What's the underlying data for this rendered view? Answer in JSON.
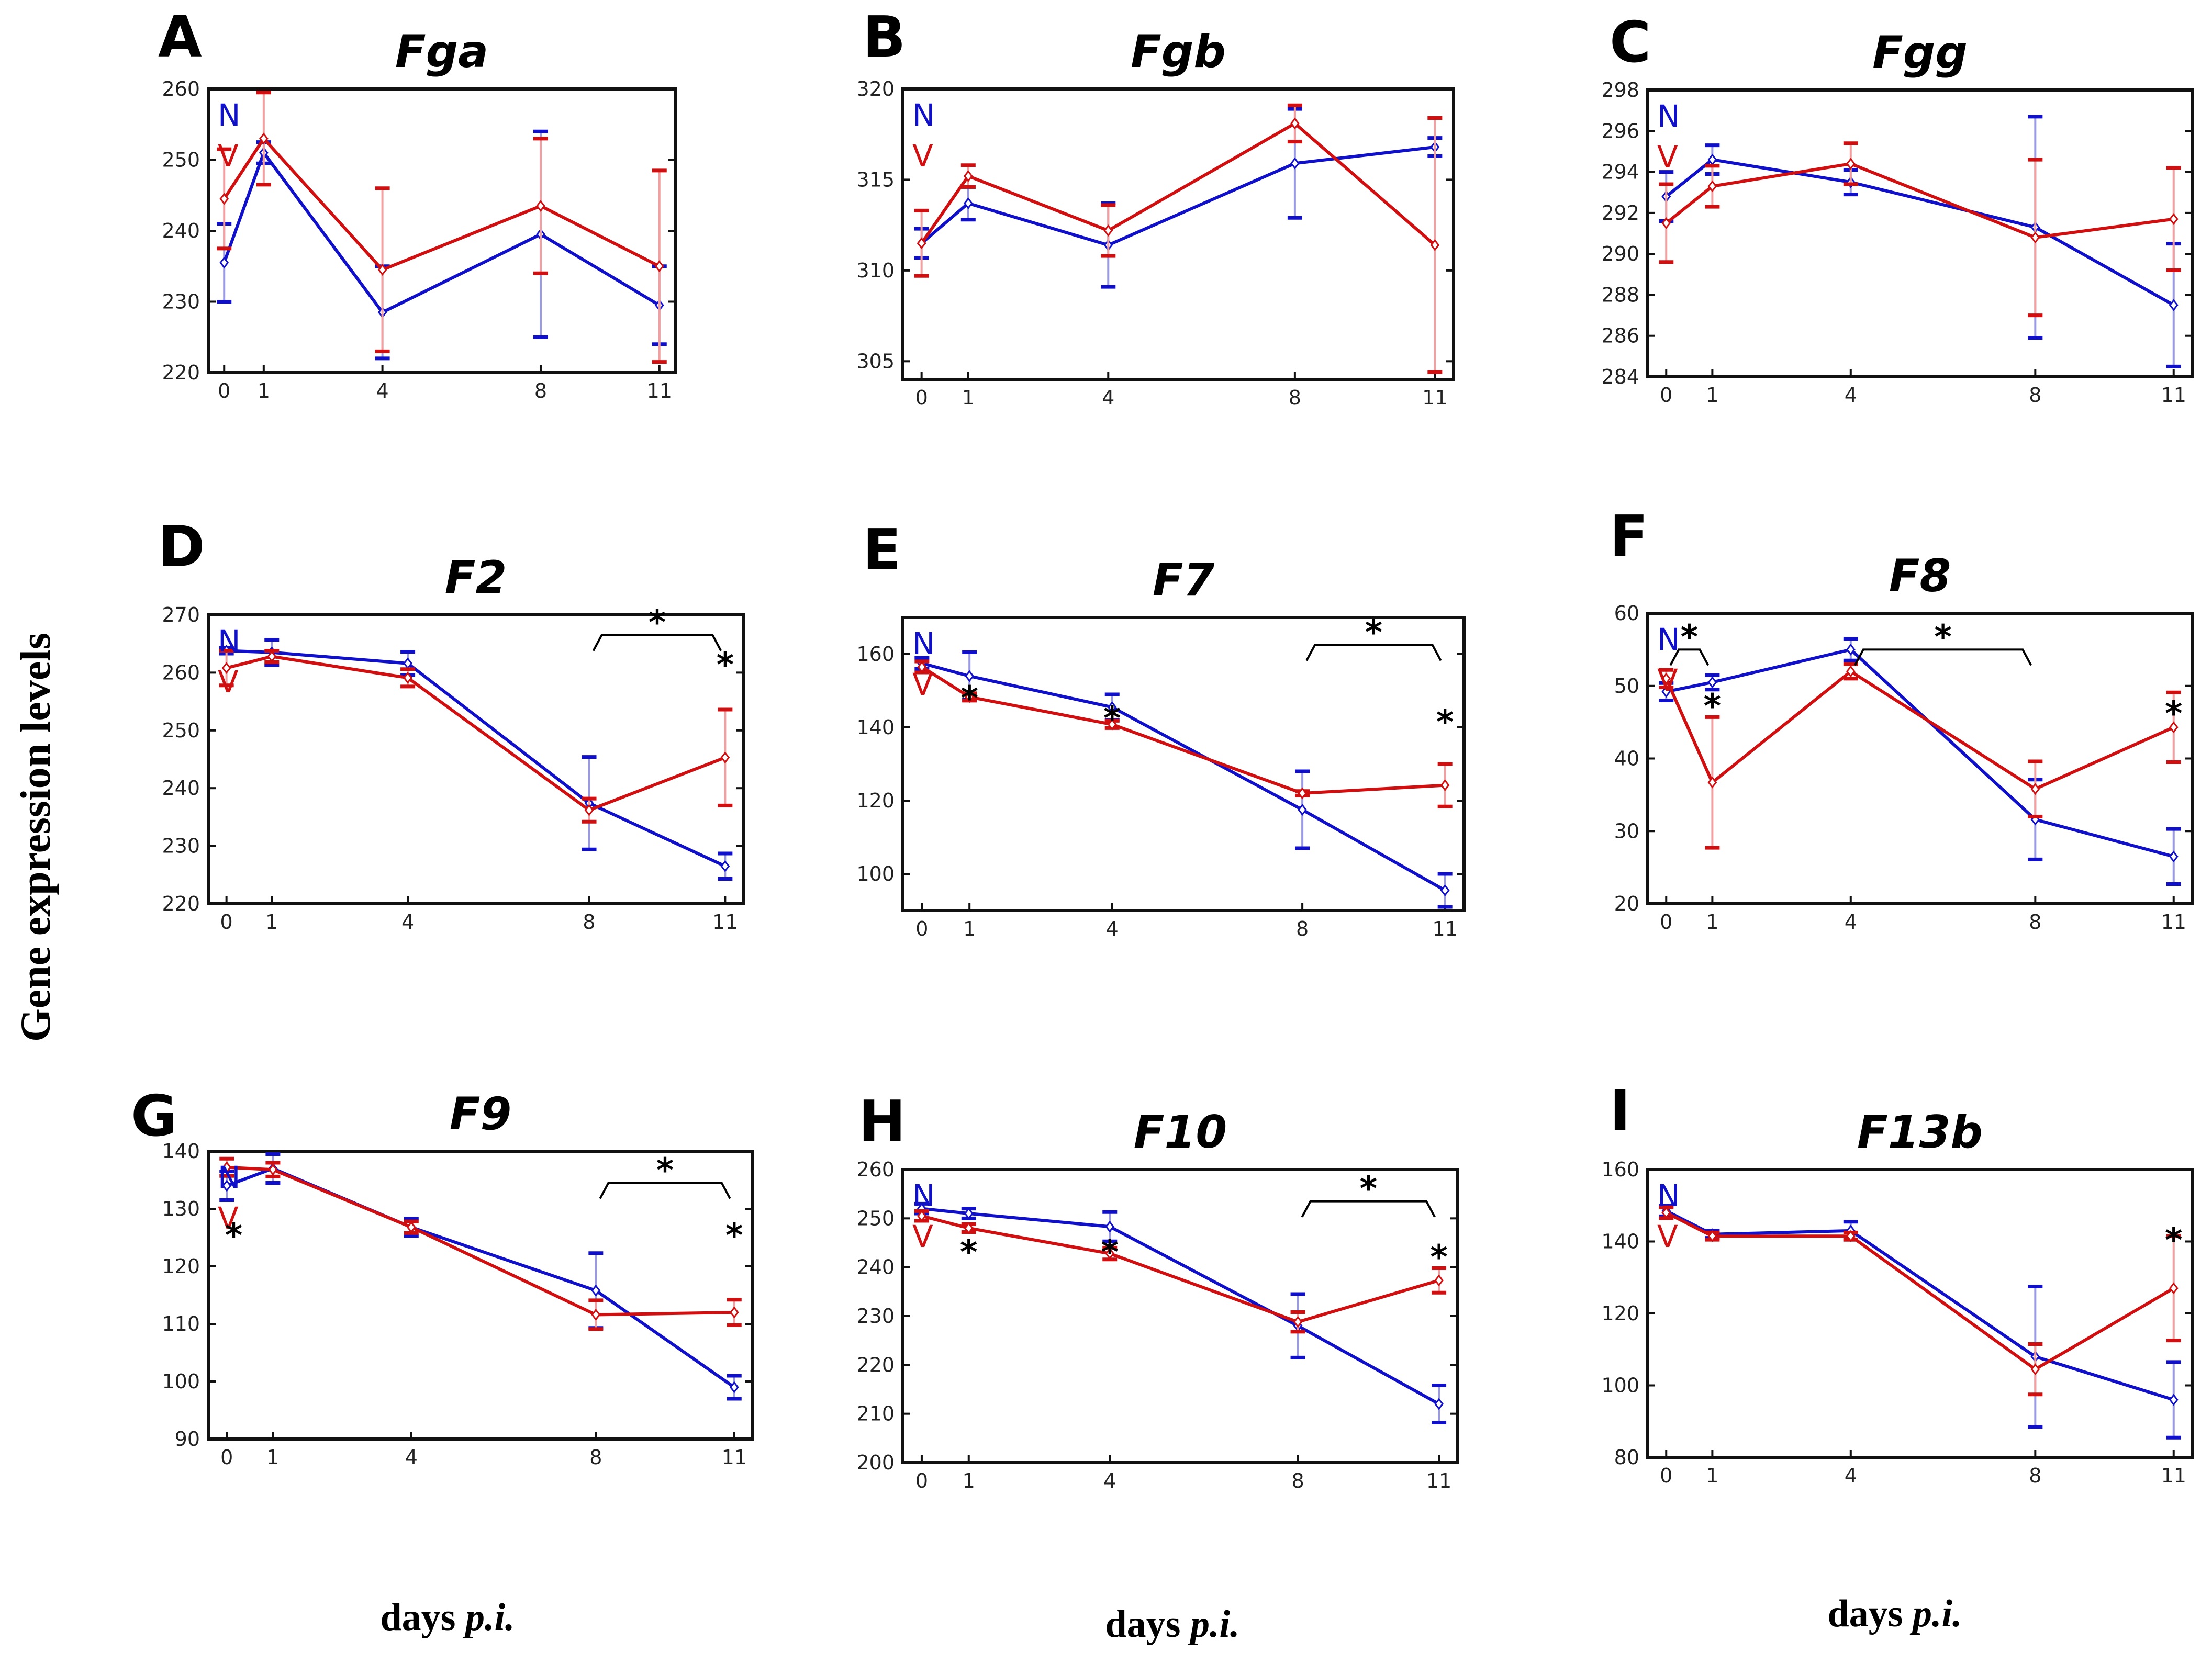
{
  "figure": {
    "y_label": "Gene expression levels",
    "x_label_prefix": "days ",
    "x_label_italic": "p.i.",
    "legend": [
      {
        "key": "N",
        "color": "#1010c8"
      },
      {
        "key": "V",
        "color": "#d01010"
      }
    ],
    "colors": {
      "N": "#1010c8",
      "V": "#d01010",
      "N_bar": "#9a9ae0",
      "V_bar": "#f0a0a0"
    }
  },
  "chart_data": [
    {
      "panel": "A",
      "title": "Fga",
      "type": "line",
      "x": [
        0,
        1,
        4,
        8,
        11
      ],
      "xlim": [
        -0.4,
        11.4
      ],
      "ylim": [
        220,
        260
      ],
      "yticks": [
        220,
        230,
        240,
        250,
        260
      ],
      "series": [
        {
          "name": "N",
          "values": [
            235.5,
            251,
            228.5,
            239.5,
            229.5
          ],
          "err": [
            5.5,
            1.5,
            6.5,
            14.5,
            5.5
          ]
        },
        {
          "name": "V",
          "values": [
            244.5,
            253,
            234.5,
            243.5,
            235
          ],
          "err": [
            7,
            6.5,
            11.5,
            9.5,
            13.5
          ]
        }
      ],
      "stars": [],
      "brackets": []
    },
    {
      "panel": "B",
      "title": "Fgb",
      "type": "line",
      "x": [
        0,
        1,
        4,
        8,
        11
      ],
      "xlim": [
        -0.4,
        11.4
      ],
      "ylim": [
        304,
        320
      ],
      "yticks": [
        305,
        310,
        315,
        320
      ],
      "series": [
        {
          "name": "N",
          "values": [
            311.5,
            313.7,
            311.4,
            315.9,
            316.8
          ],
          "err": [
            0.8,
            0.9,
            2.3,
            3.0,
            0.5
          ]
        },
        {
          "name": "V",
          "values": [
            311.5,
            315.2,
            312.2,
            318.1,
            311.4
          ],
          "err": [
            1.8,
            0.6,
            1.4,
            1.0,
            7.0
          ]
        }
      ],
      "stars": [],
      "brackets": []
    },
    {
      "panel": "C",
      "title": "Fgg",
      "type": "line",
      "x": [
        0,
        1,
        4,
        8,
        11
      ],
      "xlim": [
        -0.4,
        11.4
      ],
      "ylim": [
        284,
        298
      ],
      "yticks": [
        284,
        286,
        288,
        290,
        292,
        294,
        296,
        298
      ],
      "series": [
        {
          "name": "N",
          "values": [
            292.8,
            294.6,
            293.5,
            291.3,
            287.5
          ],
          "err": [
            1.2,
            0.7,
            0.6,
            5.4,
            3.0
          ]
        },
        {
          "name": "V",
          "values": [
            291.5,
            293.3,
            294.4,
            290.8,
            291.7
          ],
          "err": [
            1.9,
            1.0,
            1.0,
            3.8,
            2.5
          ]
        }
      ],
      "stars": [],
      "brackets": []
    },
    {
      "panel": "D",
      "title": "F2",
      "type": "line",
      "x": [
        0,
        1,
        4,
        8,
        11
      ],
      "xlim": [
        -0.4,
        11.4
      ],
      "ylim": [
        220,
        270
      ],
      "yticks": [
        220,
        230,
        240,
        250,
        260,
        270
      ],
      "series": [
        {
          "name": "N",
          "values": [
            263.8,
            263.5,
            261.6,
            237.4,
            226.5
          ],
          "err": [
            0.5,
            2.2,
            2.0,
            8.0,
            2.2
          ]
        },
        {
          "name": "V",
          "values": [
            260.8,
            262.8,
            259.1,
            236.2,
            245.3
          ],
          "err": [
            3.0,
            1.0,
            1.5,
            2.0,
            8.3
          ]
        }
      ],
      "stars": [
        {
          "x": 11,
          "y": 263,
          "text": "*"
        }
      ],
      "brackets": [
        {
          "x1": 8,
          "x2": 11,
          "y": 266.5,
          "text": "*"
        }
      ]
    },
    {
      "panel": "E",
      "title": "F7",
      "type": "line",
      "x": [
        0,
        1,
        4,
        8,
        11
      ],
      "xlim": [
        -0.4,
        11.4
      ],
      "ylim": [
        90,
        170
      ],
      "yticks": [
        100,
        120,
        140,
        160
      ],
      "series": [
        {
          "name": "N",
          "values": [
            157.5,
            154,
            145.5,
            117.5,
            95.5
          ],
          "err": [
            1.5,
            6.5,
            3.5,
            10.5,
            4.5
          ]
        },
        {
          "name": "V",
          "values": [
            156.5,
            148.3,
            140.8,
            122,
            124.2
          ],
          "err": [
            1.5,
            1.0,
            1.0,
            0.6,
            5.8
          ]
        }
      ],
      "stars": [
        {
          "x": 1,
          "y": 150.5,
          "text": "*"
        },
        {
          "x": 4,
          "y": 145,
          "text": "*"
        },
        {
          "x": 11,
          "y": 144,
          "text": "*"
        }
      ],
      "brackets": [
        {
          "x1": 8,
          "x2": 11,
          "y": 162.5,
          "text": "*"
        }
      ]
    },
    {
      "panel": "F",
      "title": "F8",
      "type": "line",
      "x": [
        0,
        1,
        4,
        8,
        11
      ],
      "xlim": [
        -0.4,
        11.4
      ],
      "ylim": [
        20,
        60
      ],
      "yticks": [
        20,
        30,
        40,
        50,
        60
      ],
      "series": [
        {
          "name": "N",
          "values": [
            49.2,
            50.5,
            55,
            31.6,
            26.5
          ],
          "err": [
            1.2,
            1.0,
            1.5,
            5.5,
            3.8
          ]
        },
        {
          "name": "V",
          "values": [
            51,
            36.7,
            52,
            35.8,
            44.3
          ],
          "err": [
            1.2,
            9.0,
            1.0,
            3.8,
            4.8
          ]
        }
      ],
      "stars": [
        {
          "x": 1,
          "y": 48.5,
          "text": "*"
        },
        {
          "x": 11,
          "y": 47.5,
          "text": "*"
        }
      ],
      "brackets": [
        {
          "x1": 0,
          "x2": 1,
          "y": 55,
          "text": "*"
        },
        {
          "x1": 4,
          "x2": 8,
          "y": 55,
          "text": "*"
        }
      ]
    },
    {
      "panel": "G",
      "title": "F9",
      "type": "line",
      "x": [
        0,
        1,
        4,
        8,
        11
      ],
      "xlim": [
        -0.4,
        11.4
      ],
      "ylim": [
        90,
        140
      ],
      "yticks": [
        90,
        100,
        110,
        120,
        130,
        140
      ],
      "series": [
        {
          "name": "N",
          "values": [
            134,
            137,
            126.8,
            115.8,
            99
          ],
          "err": [
            2.5,
            2.5,
            1.5,
            6.5,
            2.0
          ]
        },
        {
          "name": "V",
          "values": [
            137.2,
            136.8,
            126.8,
            111.6,
            112
          ],
          "err": [
            1.5,
            1.2,
            1.0,
            2.5,
            2.2
          ]
        }
      ],
      "stars": [
        {
          "x": 0.15,
          "y": 127,
          "text": "*"
        },
        {
          "x": 11,
          "y": 127,
          "text": "*"
        }
      ],
      "brackets": [
        {
          "x1": 8,
          "x2": 11,
          "y": 134.5,
          "text": "*"
        }
      ]
    },
    {
      "panel": "H",
      "title": "F10",
      "type": "line",
      "x": [
        0,
        1,
        4,
        8,
        11
      ],
      "xlim": [
        -0.4,
        11.4
      ],
      "ylim": [
        200,
        260
      ],
      "yticks": [
        200,
        210,
        220,
        230,
        240,
        250,
        260
      ],
      "series": [
        {
          "name": "N",
          "values": [
            252,
            251,
            248.3,
            228,
            212
          ],
          "err": [
            1.0,
            1.0,
            3.0,
            6.5,
            3.8
          ]
        },
        {
          "name": "V",
          "values": [
            250.5,
            248,
            242.8,
            228.8,
            237.3
          ],
          "err": [
            1.0,
            0.8,
            1.2,
            2.0,
            2.5
          ]
        }
      ],
      "stars": [
        {
          "x": 1,
          "y": 245,
          "text": "*"
        },
        {
          "x": 4,
          "y": 245,
          "text": "*"
        },
        {
          "x": 11,
          "y": 244,
          "text": "*"
        }
      ],
      "brackets": [
        {
          "x1": 8,
          "x2": 11,
          "y": 253.5,
          "text": "*"
        }
      ]
    },
    {
      "panel": "I",
      "title": "F13b",
      "type": "line",
      "x": [
        0,
        1,
        4,
        8,
        11
      ],
      "xlim": [
        -0.4,
        11.4
      ],
      "ylim": [
        80,
        160
      ],
      "yticks": [
        80,
        100,
        120,
        140,
        160
      ],
      "series": [
        {
          "name": "N",
          "values": [
            148.5,
            142,
            143,
            108,
            96
          ],
          "err": [
            1.5,
            1.0,
            2.5,
            19.5,
            10.5
          ]
        },
        {
          "name": "V",
          "values": [
            148,
            141.5,
            141.5,
            104.5,
            127
          ],
          "err": [
            1.5,
            1.0,
            1.0,
            7.0,
            14.5
          ]
        }
      ],
      "stars": [
        {
          "x": 11,
          "y": 143,
          "text": "*"
        }
      ],
      "brackets": []
    }
  ]
}
